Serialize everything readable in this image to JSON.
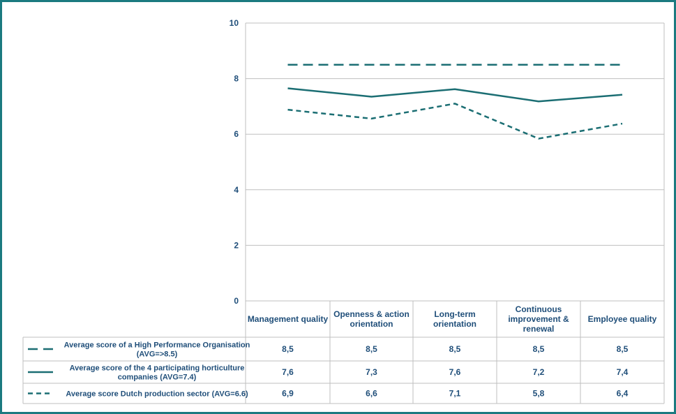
{
  "chart_data": {
    "type": "line",
    "title": "",
    "xlabel": "",
    "ylabel": "",
    "ylim": [
      0,
      10
    ],
    "yticks": [
      "0",
      "2",
      "4",
      "6",
      "8",
      "10"
    ],
    "grid": true,
    "categories": [
      [
        "Management quality"
      ],
      [
        "Openness & action",
        "orientation"
      ],
      [
        "Long-term",
        "orientation"
      ],
      [
        "Continuous",
        "improvement &",
        "renewal"
      ],
      [
        "Employee quality"
      ]
    ],
    "series": [
      {
        "name_lines": [
          "Average score of a High Performance Organisation",
          "(AVG=>8.5)"
        ],
        "style": "long-dash",
        "values": [
          8.5,
          8.5,
          8.5,
          8.5,
          8.5
        ],
        "labels": [
          "8,5",
          "8,5",
          "8,5",
          "8,5",
          "8,5"
        ]
      },
      {
        "name_lines": [
          "Average score of the 4 participating horticulture",
          "companies (AVG=7.4)"
        ],
        "style": "solid",
        "values": [
          7.65,
          7.35,
          7.62,
          7.18,
          7.42
        ],
        "labels": [
          "7,6",
          "7,3",
          "7,6",
          "7,2",
          "7,4"
        ]
      },
      {
        "name_lines": [
          "Average score Dutch production sector (AVG=6.6)"
        ],
        "style": "short-dash",
        "values": [
          6.88,
          6.56,
          7.1,
          5.84,
          6.38
        ],
        "labels": [
          "6,9",
          "6,6",
          "7,1",
          "5,8",
          "6,4"
        ]
      }
    ],
    "colors": {
      "line": "#1b6e73",
      "text": "#1f4e79",
      "grid": "#bfbfbf",
      "frame": "#1b7a80"
    }
  }
}
